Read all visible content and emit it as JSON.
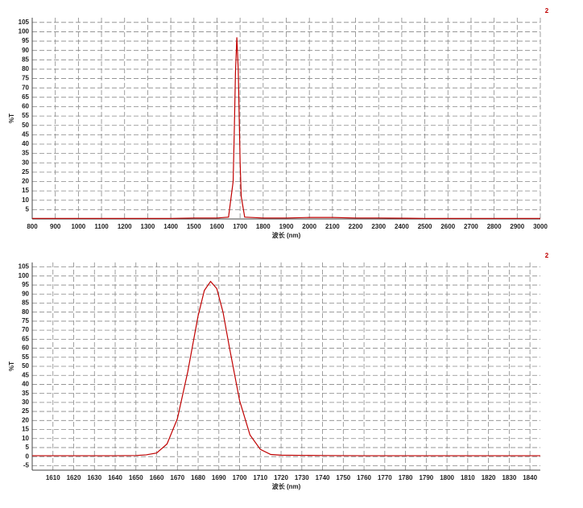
{
  "chart_data": [
    {
      "type": "line",
      "xlabel": "波长 (nm)",
      "ylabel": "%T",
      "x": [
        800,
        1000,
        1200,
        1400,
        1500,
        1600,
        1650,
        1670,
        1675,
        1680,
        1686,
        1692,
        1697,
        1700,
        1705,
        1720,
        1800,
        1900,
        2000,
        2100,
        2200,
        2300,
        2500,
        3000
      ],
      "series": [
        {
          "name": "2",
          "color": "#c00000",
          "values": [
            0.3,
            0.3,
            0.3,
            0.3,
            0.5,
            0.5,
            1,
            20,
            47,
            78,
            97,
            80,
            50,
            31,
            12,
            1,
            0.5,
            0.5,
            0.8,
            0.8,
            0.5,
            0.5,
            0.3,
            0.3
          ]
        }
      ],
      "xlim": [
        800,
        3000
      ],
      "ylim": [
        0,
        107.5
      ],
      "xticks": [
        800,
        900,
        1000,
        1100,
        1200,
        1300,
        1400,
        1500,
        1600,
        1700,
        1800,
        1900,
        2000,
        2100,
        2200,
        2300,
        2400,
        2500,
        2600,
        2700,
        2800,
        2900,
        3000
      ],
      "yticks": [
        5,
        10,
        15,
        20,
        25,
        30,
        35,
        40,
        45,
        50,
        55,
        60,
        65,
        70,
        75,
        80,
        85,
        90,
        95,
        100,
        105
      ],
      "grid": true
    },
    {
      "type": "line",
      "xlabel": "波长 (nm)",
      "ylabel": "%T",
      "x": [
        1600,
        1620,
        1640,
        1650,
        1655,
        1660,
        1665,
        1670,
        1675,
        1680,
        1683,
        1686,
        1689,
        1692,
        1695,
        1700,
        1705,
        1710,
        1715,
        1720,
        1740,
        1760,
        1800,
        1845
      ],
      "series": [
        {
          "name": "2",
          "color": "#c00000",
          "values": [
            0.5,
            0.5,
            0.5,
            0.6,
            1,
            2,
            7,
            21,
            47,
            78,
            92,
            97,
            93,
            80,
            61,
            31,
            12,
            4,
            1.2,
            0.8,
            0.6,
            0.5,
            0.5,
            0.5
          ]
        }
      ],
      "xlim": [
        1600,
        1845
      ],
      "ylim": [
        -7.5,
        107.5
      ],
      "xticks": [
        1610,
        1620,
        1630,
        1640,
        1650,
        1660,
        1670,
        1680,
        1690,
        1700,
        1710,
        1720,
        1730,
        1740,
        1750,
        1760,
        1770,
        1780,
        1790,
        1800,
        1810,
        1820,
        1830,
        1840
      ],
      "yticks": [
        -5,
        0,
        5,
        10,
        15,
        20,
        25,
        30,
        35,
        40,
        45,
        50,
        55,
        60,
        65,
        70,
        75,
        80,
        85,
        90,
        95,
        100,
        105
      ],
      "grid": true
    }
  ]
}
